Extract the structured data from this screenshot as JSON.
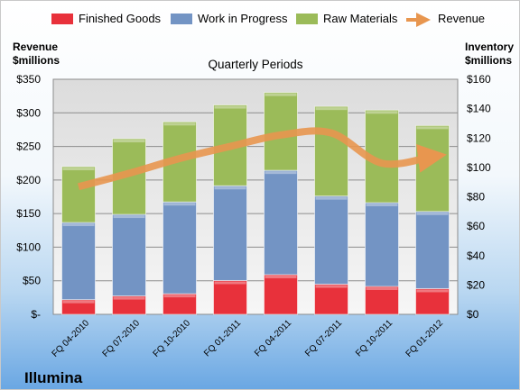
{
  "chart_data": {
    "type": "bar",
    "stacked": true,
    "subtitle": "Quarterly Periods",
    "company": "Illumina",
    "left_axis_title": [
      "Revenue",
      "$millions"
    ],
    "right_axis_title": [
      "Inventory",
      "$millions"
    ],
    "categories": [
      "FQ 04-2010",
      "FQ 07-2010",
      "FQ 10-2010",
      "FQ 01-2011",
      "FQ 04-2011",
      "FQ 07-2011",
      "FQ 10-2011",
      "FQ 01-2012"
    ],
    "left_ticks": [
      "$-",
      "$50",
      "$100",
      "$150",
      "$200",
      "$250",
      "$300",
      "$350"
    ],
    "right_ticks": [
      "$0",
      "$20",
      "$40",
      "$60",
      "$80",
      "$100",
      "$120",
      "$140",
      "$160"
    ],
    "left_ylim": [
      0,
      350
    ],
    "right_ylim": [
      0,
      160
    ],
    "grid": true,
    "legend_position": "top",
    "series": [
      {
        "name": "Finished Goods",
        "axis": "right",
        "color": "#e8313b",
        "values": [
          10,
          12.5,
          14,
          23,
          27,
          20.5,
          19,
          17.5
        ]
      },
      {
        "name": "Work in Progress",
        "axis": "right",
        "color": "#7394c4",
        "values": [
          52.5,
          55.5,
          62.5,
          64.5,
          71,
          60,
          57,
          52.5
        ]
      },
      {
        "name": "Raw Materials",
        "axis": "right",
        "color": "#9bbb59",
        "values": [
          38,
          51.5,
          54.5,
          55,
          53,
          61,
          63,
          58.5
        ]
      }
    ],
    "line_series": {
      "name": "Revenue",
      "axis": "left",
      "color": "#e8964f",
      "values": [
        190,
        210,
        232,
        250,
        267,
        270,
        225,
        235
      ]
    }
  }
}
